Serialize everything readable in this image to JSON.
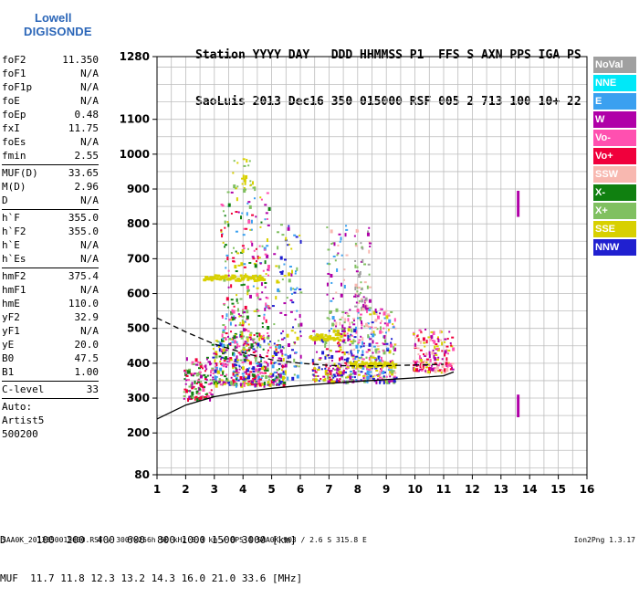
{
  "logo": {
    "line1": "Lowell",
    "line2": "DIGISONDE"
  },
  "header": {
    "row1": "Station YYYY DAY   DDD HHMMSS P1  FFS S AXN PPS IGA PS",
    "row2": "SaoLuis 2013 Dec16 350 015000 RSF 005 2 713 100 10+ 22"
  },
  "params": [
    [
      {
        "k": "foF2",
        "v": "11.350"
      },
      {
        "k": "foF1",
        "v": "N/A"
      },
      {
        "k": "foF1p",
        "v": "N/A"
      },
      {
        "k": "foE",
        "v": "N/A"
      },
      {
        "k": "foEp",
        "v": "0.48"
      },
      {
        "k": "fxI",
        "v": "11.75"
      },
      {
        "k": "foEs",
        "v": "N/A"
      },
      {
        "k": "fmin",
        "v": "2.55"
      }
    ],
    [
      {
        "k": "MUF(D)",
        "v": "33.65"
      },
      {
        "k": "M(D)",
        "v": "2.96"
      },
      {
        "k": "D",
        "v": "N/A"
      }
    ],
    [
      {
        "k": "h`F",
        "v": "355.0"
      },
      {
        "k": "h`F2",
        "v": "355.0"
      },
      {
        "k": "h`E",
        "v": "N/A"
      },
      {
        "k": "h`Es",
        "v": "N/A"
      }
    ],
    [
      {
        "k": "hmF2",
        "v": "375.4"
      },
      {
        "k": "hmF1",
        "v": "N/A"
      },
      {
        "k": "hmE",
        "v": "110.0"
      },
      {
        "k": "yF2",
        "v": "32.9"
      },
      {
        "k": "yF1",
        "v": "N/A"
      },
      {
        "k": "yE",
        "v": "20.0"
      },
      {
        "k": "B0",
        "v": "47.5"
      },
      {
        "k": "B1",
        "v": "1.00"
      }
    ],
    [
      {
        "k": "C-level",
        "v": "33"
      }
    ]
  ],
  "autoscale": {
    "line1": "Auto:",
    "line2": "Artist5",
    "line3": "500200"
  },
  "legend": [
    {
      "label": "NoVal",
      "color": "#a0a0a0"
    },
    {
      "label": "NNE",
      "color": "#00e8f8"
    },
    {
      "label": "E",
      "color": "#3aa0f0"
    },
    {
      "label": "W",
      "color": "#b000a8"
    },
    {
      "label": "Vo-",
      "color": "#ff50b0"
    },
    {
      "label": "Vo+",
      "color": "#f0003c"
    },
    {
      "label": "SSW",
      "color": "#f8b8b0"
    },
    {
      "label": "X-",
      "color": "#108010"
    },
    {
      "label": "X+",
      "color": "#80c060"
    },
    {
      "label": "SSE",
      "color": "#d8d000"
    },
    {
      "label": "NNW",
      "color": "#2020d0"
    }
  ],
  "bottom": {
    "d_row": "D     100  200  400  600  800 1000 1500 3000 [km]",
    "muf_row": "MUF  11.7 11.8 12.3 13.2 14.3 16.0 21.0 33.6 [MHz]"
  },
  "footer": {
    "file": "SAA0K_2013350015000.RSF / 300fx256h 50 kHz 5.0 km / DPS-4 SAA0K 903 / 2.6 S 315.8 E",
    "version": "Ion2Png 1.3.17"
  },
  "chart_data": {
    "type": "scatter",
    "xlim": [
      1,
      16
    ],
    "ylim": [
      80,
      1280
    ],
    "x_ticks": [
      1,
      2,
      3,
      4,
      5,
      6,
      7,
      8,
      9,
      10,
      11,
      12,
      13,
      14,
      15,
      16
    ],
    "y_ticks": [
      80,
      200,
      300,
      400,
      500,
      600,
      700,
      800,
      900,
      1000,
      1100,
      1280
    ],
    "grid": true,
    "clusters": [
      {
        "x": [
          1.9,
          2.9
        ],
        "y": [
          300,
          420
        ],
        "n": 140,
        "colors": [
          "#b000a8",
          "#ff50b0",
          "#f0003c",
          "#108010",
          "#80c060"
        ]
      },
      {
        "x": [
          2.9,
          5.4
        ],
        "y": [
          340,
          470
        ],
        "n": 420,
        "colors": [
          "#b000a8",
          "#ff50b0",
          "#f0003c",
          "#2020d0",
          "#80c060",
          "#108010",
          "#3aa0f0",
          "#d8d000"
        ]
      },
      {
        "x": [
          3.2,
          4.9
        ],
        "y": [
          470,
          900
        ],
        "n": 260,
        "colors": [
          "#b000a8",
          "#ff50b0",
          "#f0003c",
          "#80c060",
          "#3aa0f0",
          "#108010",
          "#d8d000"
        ]
      },
      {
        "x": [
          3.6,
          4.4
        ],
        "y": [
          900,
          990
        ],
        "n": 30,
        "colors": [
          "#d8d000",
          "#80c060"
        ]
      },
      {
        "x": [
          5.0,
          6.0
        ],
        "y": [
          360,
          800
        ],
        "n": 110,
        "colors": [
          "#b000a8",
          "#3aa0f0",
          "#2020d0",
          "#d8d000",
          "#80c060"
        ]
      },
      {
        "x": [
          6.4,
          7.6
        ],
        "y": [
          350,
          500
        ],
        "n": 170,
        "colors": [
          "#d8d000",
          "#b000a8",
          "#f0003c",
          "#80c060",
          "#2020d0"
        ]
      },
      {
        "x": [
          6.9,
          7.6
        ],
        "y": [
          500,
          800
        ],
        "n": 60,
        "colors": [
          "#b000a8",
          "#f8b8b0",
          "#80c060",
          "#3aa0f0"
        ]
      },
      {
        "x": [
          7.6,
          9.3
        ],
        "y": [
          350,
          560
        ],
        "n": 330,
        "colors": [
          "#d8d000",
          "#2020d0",
          "#b000a8",
          "#ff50b0",
          "#f8b8b0",
          "#80c060",
          "#3aa0f0"
        ]
      },
      {
        "x": [
          7.8,
          8.4
        ],
        "y": [
          560,
          800
        ],
        "n": 70,
        "colors": [
          "#b000a8",
          "#f8b8b0",
          "#80c060",
          "#a0a0a0"
        ]
      },
      {
        "x": [
          9.9,
          11.3
        ],
        "y": [
          380,
          500
        ],
        "n": 170,
        "colors": [
          "#b000a8",
          "#ff50b0",
          "#f8b8b0",
          "#f0003c",
          "#d8d000"
        ]
      }
    ],
    "bands": [
      {
        "x": [
          2.6,
          4.7
        ],
        "y": 648,
        "color": "#d8d000"
      },
      {
        "x": [
          6.3,
          7.4
        ],
        "y": 478,
        "color": "#d8d000"
      },
      {
        "x": [
          7.7,
          9.3
        ],
        "y": 400,
        "color": "#d8d000"
      }
    ],
    "isolated": [
      {
        "x": 13.6,
        "y1": 820,
        "y2": 895,
        "color": "#b000a8"
      },
      {
        "x": 13.6,
        "y1": 245,
        "y2": 310,
        "color": "#b000a8"
      }
    ],
    "profile_curve": [
      [
        1,
        240
      ],
      [
        2,
        280
      ],
      [
        3,
        304
      ],
      [
        4,
        318
      ],
      [
        5,
        328
      ],
      [
        6,
        336
      ],
      [
        7,
        342
      ],
      [
        8,
        348
      ],
      [
        9,
        353
      ],
      [
        10,
        358
      ],
      [
        11,
        364
      ],
      [
        11.35,
        375
      ]
    ],
    "dashed_curve": [
      [
        1,
        530
      ],
      [
        2,
        490
      ],
      [
        3,
        455
      ],
      [
        4,
        430
      ],
      [
        5,
        410
      ],
      [
        6,
        400
      ],
      [
        7,
        394
      ],
      [
        8,
        392
      ],
      [
        9,
        393
      ],
      [
        10,
        395
      ],
      [
        11,
        397
      ]
    ]
  }
}
